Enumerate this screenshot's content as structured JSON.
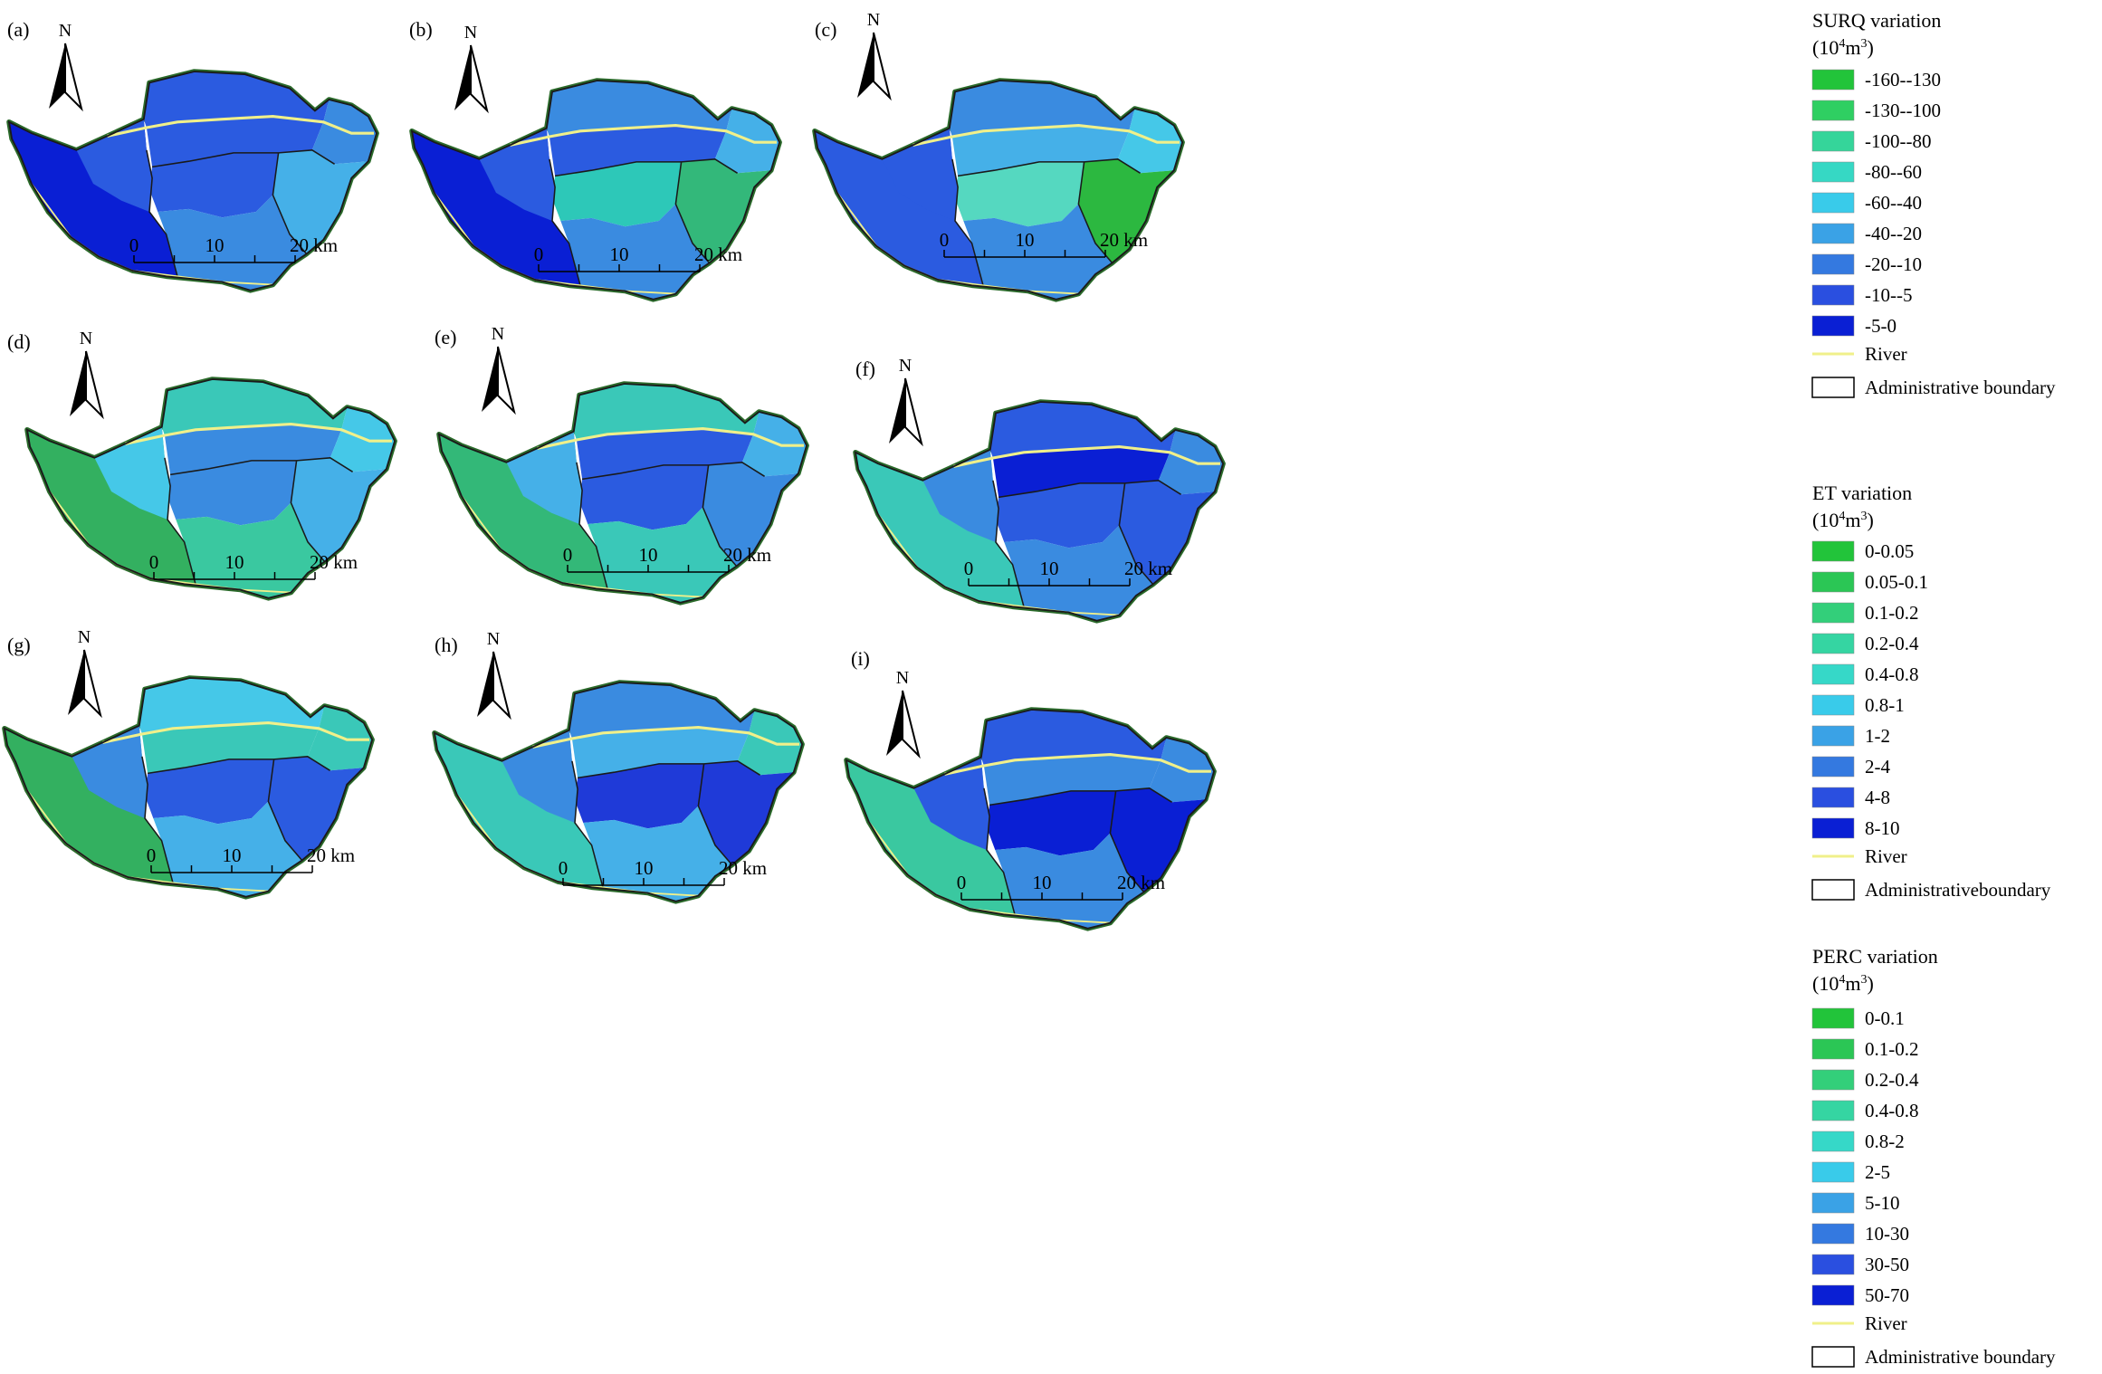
{
  "panels": [
    {
      "label": "(a)",
      "group": "surq",
      "fills": [
        "#0a1fd4",
        "#2b5be0",
        "#2b5be0",
        "#3a8be0",
        "#2b5be0",
        "#45b0e8",
        "#3a8be0",
        "#2b5be0"
      ]
    },
    {
      "label": "(b)",
      "group": "surq",
      "fills": [
        "#0a1fd4",
        "#3a8be0",
        "#2b5be0",
        "#45b0e8",
        "#2dc8b8",
        "#33b87a",
        "#3a8be0",
        "#2b5be0"
      ]
    },
    {
      "label": "(c)",
      "group": "surq",
      "fills": [
        "#2b5be0",
        "#3a8be0",
        "#45b0e8",
        "#45c8e8",
        "#55d8c0",
        "#2cb840",
        "#3a8be0",
        "#2b5be0"
      ]
    },
    {
      "label": "(d)",
      "group": "et",
      "fills": [
        "#33b060",
        "#3ac8b8",
        "#3a8be0",
        "#45c8e8",
        "#3a8be0",
        "#45b0e8",
        "#3ac8a0",
        "#45c8e8"
      ]
    },
    {
      "label": "(e)",
      "group": "et",
      "fills": [
        "#33b878",
        "#3ac8b8",
        "#2b5be0",
        "#45b0e8",
        "#2b5be0",
        "#3a8be0",
        "#3ac8b8",
        "#45b0e8"
      ]
    },
    {
      "label": "(f)",
      "group": "et",
      "fills": [
        "#3ac8b8",
        "#2b5be0",
        "#0a1fd4",
        "#3a8be0",
        "#2b5be0",
        "#2b5be0",
        "#3a8be0",
        "#3a8be0"
      ]
    },
    {
      "label": "(g)",
      "group": "perc",
      "fills": [
        "#33b060",
        "#45c8e8",
        "#3ac8b8",
        "#3ac8b8",
        "#2b5be0",
        "#2b5be0",
        "#45b0e8",
        "#3a8be0"
      ]
    },
    {
      "label": "(h)",
      "group": "perc",
      "fills": [
        "#3ac8b8",
        "#3a8be0",
        "#45b0e8",
        "#3ac8b8",
        "#1f3ad8",
        "#1f3ad8",
        "#45b0e8",
        "#3a8be0"
      ]
    },
    {
      "label": "(i)",
      "group": "perc",
      "fills": [
        "#3ac8a0",
        "#2b5be0",
        "#3a8be0",
        "#3a8be0",
        "#0a1fd4",
        "#0a1fd4",
        "#3a8be0",
        "#2b5be0"
      ]
    }
  ],
  "north_label": "N",
  "scale_bar": {
    "tick_0": "0",
    "tick_10": "10",
    "tick_20": "20 km"
  },
  "legends": {
    "surq": {
      "title": "SURQ variation",
      "unit_prefix": "(10",
      "unit_exp": "4",
      "unit_mid": "m",
      "unit_exp2": "3",
      "unit_suffix": ")",
      "classes": [
        {
          "label": "-160--130",
          "color": "#22c43a"
        },
        {
          "label": "-130--100",
          "color": "#2fcf62"
        },
        {
          "label": "-100--80",
          "color": "#35d59a"
        },
        {
          "label": "-80--60",
          "color": "#36d8c4"
        },
        {
          "label": "-60--40",
          "color": "#39cbea"
        },
        {
          "label": "-40--20",
          "color": "#3aa2e6"
        },
        {
          "label": "-20--10",
          "color": "#3479e0"
        },
        {
          "label": "-10--5",
          "color": "#2a4fe0"
        },
        {
          "label": "-5-0",
          "color": "#0a1fd4"
        }
      ],
      "river_label": "River",
      "boundary_label": "Administrative boundary"
    },
    "et": {
      "title": "ET variation",
      "unit_prefix": "(10",
      "unit_exp": "4",
      "unit_mid": "m",
      "unit_exp2": "3",
      "unit_suffix": ")",
      "classes": [
        {
          "label": "0-0.05",
          "color": "#22c43a"
        },
        {
          "label": "0.05-0.1",
          "color": "#2bc655"
        },
        {
          "label": "0.1-0.2",
          "color": "#33cf7a"
        },
        {
          "label": "0.2-0.4",
          "color": "#35d5a2"
        },
        {
          "label": "0.4-0.8",
          "color": "#36d8c8"
        },
        {
          "label": "0.8-1",
          "color": "#39cbea"
        },
        {
          "label": "1-2",
          "color": "#3aa2e6"
        },
        {
          "label": "2-4",
          "color": "#3479e0"
        },
        {
          "label": "4-8",
          "color": "#2a4fe0"
        },
        {
          "label": "8-10",
          "color": "#0a1fd4"
        }
      ],
      "river_label": "River",
      "boundary_label": "Administrativeboundary"
    },
    "perc": {
      "title": "PERC variation",
      "unit_prefix": "(10",
      "unit_exp": "4",
      "unit_mid": "m",
      "unit_exp2": "3",
      "unit_suffix": ")",
      "classes": [
        {
          "label": "0-0.1",
          "color": "#22c43a"
        },
        {
          "label": "0.1-0.2",
          "color": "#2bc655"
        },
        {
          "label": "0.2-0.4",
          "color": "#33cf7a"
        },
        {
          "label": "0.4-0.8",
          "color": "#35d5a2"
        },
        {
          "label": "0.8-2",
          "color": "#36d8c8"
        },
        {
          "label": "2-5",
          "color": "#39cbea"
        },
        {
          "label": "5-10",
          "color": "#3aa2e6"
        },
        {
          "label": "10-30",
          "color": "#3479e0"
        },
        {
          "label": "30-50",
          "color": "#2a4fe0"
        },
        {
          "label": "50-70",
          "color": "#0a1fd4"
        }
      ],
      "river_label": "River",
      "boundary_label": "Administrative boundary"
    }
  },
  "colors": {
    "river": "#f0f08a",
    "boundary": "#1a1a1a",
    "basin_edge": "#2a6a2a"
  }
}
